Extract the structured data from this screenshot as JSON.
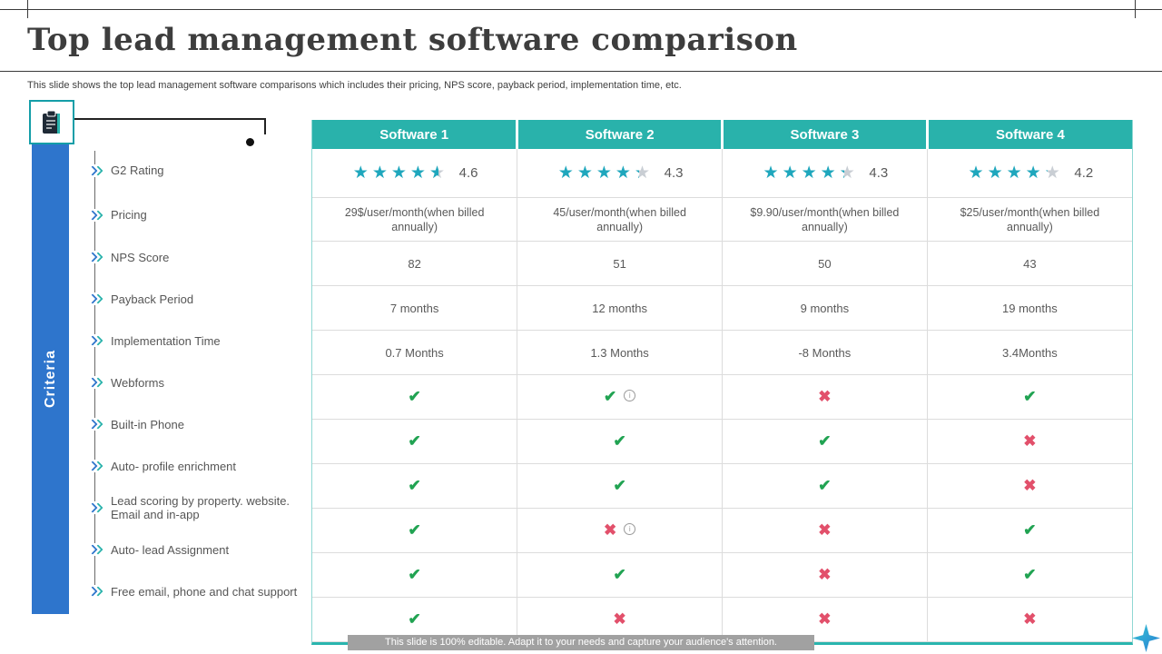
{
  "title": "Top lead management software comparison",
  "subtitle": "This slide shows the top lead management  software comparisons which includes their pricing, NPS  score, payback period, implementation  time,  etc.",
  "criteria_label": "Criteria",
  "footer_note": "This slide is 100% editable. Adapt it to your needs and capture your audience's attention.",
  "colors": {
    "header_teal": "#29b2ab",
    "criteria_blue": "#2e75cc",
    "check_green": "#21a352",
    "cross_red": "#e2506b",
    "star_teal": "#1fa7bd"
  },
  "columns": [
    "Software 1",
    "Software 2",
    "Software 3",
    "Software 4"
  ],
  "rows": [
    {
      "label": "G2 Rating",
      "type": "stars",
      "cells": [
        "4.6",
        "4.3",
        "4.3",
        "4.2"
      ]
    },
    {
      "label": "Pricing",
      "type": "text",
      "cells": [
        "29$/user/month(when  billed annually)",
        "45/user/month(when  billed annually)",
        "$9.90/user/month(when  billed annually)",
        "$25/user/month(when  billed annually)"
      ]
    },
    {
      "label": "NPS Score",
      "type": "text",
      "cells": [
        "82",
        "51",
        "50",
        "43"
      ]
    },
    {
      "label": "Payback Period",
      "type": "text",
      "cells": [
        "7 months",
        "12 months",
        "9 months",
        "19 months"
      ]
    },
    {
      "label": "Implementation  Time",
      "type": "text",
      "cells": [
        "0.7 Months",
        "1.3 Months",
        "-8 Months",
        "3.4Months"
      ]
    },
    {
      "label": "Webforms",
      "type": "mark",
      "cells": [
        "check",
        "check-info",
        "cross",
        "check"
      ]
    },
    {
      "label": "Built-in Phone",
      "type": "mark",
      "cells": [
        "check",
        "check",
        "check",
        "cross"
      ]
    },
    {
      "label": "Auto- profile enrichment",
      "type": "mark",
      "cells": [
        "check",
        "check",
        "check",
        "cross"
      ]
    },
    {
      "label": "Lead scoring by property. website. Email and in-app",
      "type": "mark",
      "cells": [
        "check",
        "cross-info",
        "cross",
        "check"
      ]
    },
    {
      "label": "Auto- lead Assignment",
      "type": "mark",
      "cells": [
        "check",
        "check",
        "cross",
        "check"
      ]
    },
    {
      "label": "Free email, phone and chat support",
      "type": "mark",
      "cells": [
        "check",
        "cross",
        "cross",
        "cross"
      ]
    }
  ]
}
